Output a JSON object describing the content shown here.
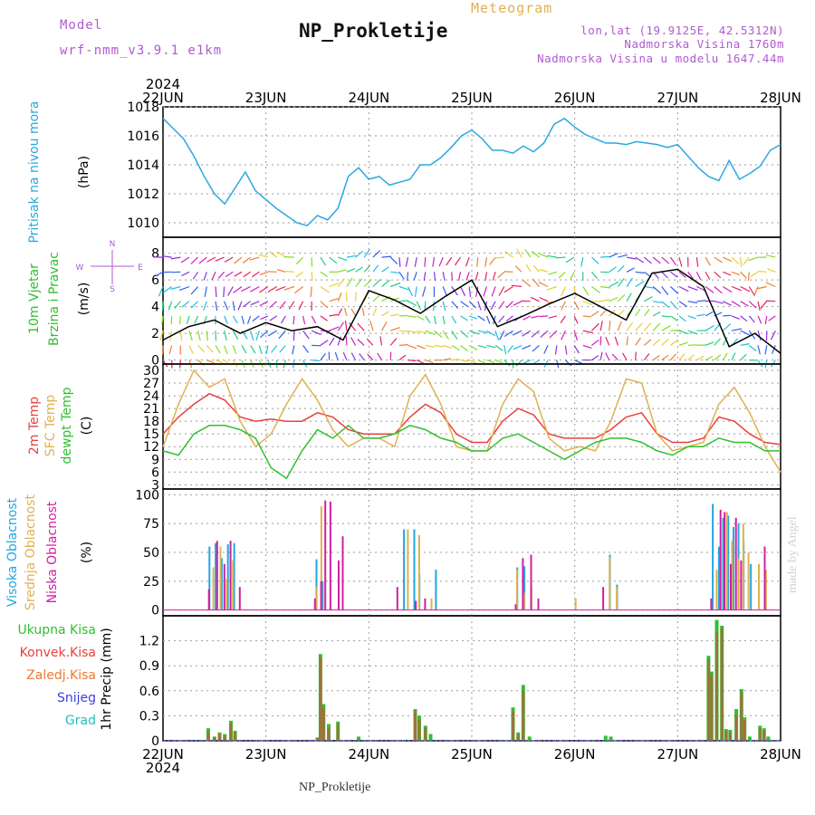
{
  "header": {
    "model_label": "Model",
    "model_run": "wrf-nmm_v3.9.1 e1km",
    "title": "NP_Prokletije",
    "subtitle": "Meteogram",
    "lonlat": "lon,lat (19.9125E, 42.5312N)",
    "elevation": "Nadmorska Visina 1760m",
    "model_elevation": "Nadmorska Visina u modelu 1647.44m",
    "year_top": "2024",
    "year_bottom": "2024"
  },
  "footer": {
    "location": "NP_Prokletije",
    "credit": "made by Angel"
  },
  "colors": {
    "pressure": "#2aa8e0",
    "temp2m": "#e84040",
    "sfctemp": "#e0b050",
    "dewpoint": "#30c030",
    "high_cloud": "#20a8e0",
    "mid_cloud": "#e0b050",
    "low_cloud": "#d020a0",
    "total_precip": "#30c030",
    "conv_precip": "#e84040",
    "freezing_precip": "#f07830",
    "snow": "#4040e0",
    "hail": "#20c0c0",
    "axis_label_wind": "#30c030"
  },
  "chart_data": [
    {
      "type": "line",
      "panel": "pressure",
      "labels": [
        "Pritisak na nivou mora",
        "(hPa)"
      ],
      "ylim": [
        1009,
        1018
      ],
      "yticks": [
        1010,
        1012,
        1014,
        1016,
        1018
      ],
      "x_days": [
        "22JUN",
        "23JUN",
        "24JUN",
        "25JUN",
        "26JUN",
        "27JUN",
        "28JUN"
      ],
      "x": [
        0,
        0.1,
        0.2,
        0.3,
        0.4,
        0.5,
        0.6,
        0.7,
        0.8,
        0.9,
        1.0,
        1.1,
        1.2,
        1.3,
        1.4,
        1.5,
        1.6,
        1.7,
        1.8,
        1.9,
        2.0,
        2.1,
        2.2,
        2.3,
        2.4,
        2.5,
        2.6,
        2.7,
        2.8,
        2.9,
        3.0,
        3.1,
        3.2,
        3.3,
        3.4,
        3.5,
        3.6,
        3.7,
        3.8,
        3.9,
        4.0,
        4.1,
        4.2,
        4.3,
        4.4,
        4.5,
        4.6,
        4.7,
        4.8,
        4.9,
        5.0,
        5.1,
        5.2,
        5.3,
        5.4,
        5.5,
        5.6,
        5.7,
        5.8,
        5.9,
        6.0
      ],
      "values": [
        1017.2,
        1016.5,
        1015.8,
        1014.6,
        1013.2,
        1012.0,
        1011.3,
        1012.4,
        1013.5,
        1012.2,
        1011.6,
        1011.0,
        1010.5,
        1010.0,
        1009.8,
        1010.5,
        1010.2,
        1011.0,
        1013.2,
        1013.8,
        1013.0,
        1013.2,
        1012.6,
        1012.8,
        1013.0,
        1014.0,
        1014.0,
        1014.5,
        1015.2,
        1016.0,
        1016.4,
        1015.8,
        1015.0,
        1015.0,
        1014.8,
        1015.3,
        1014.9,
        1015.5,
        1016.8,
        1017.2,
        1016.6,
        1016.1,
        1015.8,
        1015.5,
        1015.5,
        1015.4,
        1015.6,
        1015.5,
        1015.4,
        1015.2,
        1015.4,
        1014.6,
        1013.8,
        1013.2,
        1012.9,
        1014.3,
        1013.0,
        1013.4,
        1013.9,
        1015.0,
        1015.4
      ]
    },
    {
      "type": "line",
      "panel": "wind",
      "labels": [
        "10m Vjetar",
        "Brzina i Pravac",
        "(m/s)"
      ],
      "compass": [
        "N",
        "S",
        "W",
        "E"
      ],
      "ylim": [
        -0.3,
        9.2
      ],
      "yticks": [
        0,
        2,
        4,
        6,
        8
      ],
      "x": [
        0,
        0.25,
        0.5,
        0.75,
        1.0,
        1.25,
        1.5,
        1.75,
        2.0,
        2.25,
        2.5,
        2.75,
        3.0,
        3.25,
        3.5,
        3.75,
        4.0,
        4.25,
        4.5,
        4.75,
        5.0,
        5.25,
        5.5,
        5.75,
        6.0
      ],
      "speed": [
        1.5,
        2.5,
        3.0,
        2.0,
        2.8,
        2.2,
        2.5,
        1.5,
        5.2,
        4.5,
        3.5,
        4.8,
        6.0,
        2.5,
        3.3,
        4.2,
        5.0,
        4.0,
        3.0,
        6.5,
        6.8,
        5.5,
        1.0,
        2.0,
        0.5
      ]
    },
    {
      "type": "line",
      "panel": "temperature",
      "labels": [
        "2m Temp",
        "SFC Temp",
        "dewpt Temp",
        "(C)"
      ],
      "ylim": [
        2,
        31.5
      ],
      "yticks": [
        3,
        6,
        9,
        12,
        15,
        18,
        21,
        24,
        27,
        30
      ],
      "series": [
        {
          "name": "2m Temp",
          "x": [
            0,
            0.15,
            0.3,
            0.45,
            0.6,
            0.75,
            0.9,
            1.05,
            1.2,
            1.35,
            1.5,
            1.65,
            1.8,
            1.95,
            2.1,
            2.25,
            2.4,
            2.55,
            2.7,
            2.85,
            3.0,
            3.15,
            3.3,
            3.45,
            3.6,
            3.75,
            3.9,
            4.05,
            4.2,
            4.35,
            4.5,
            4.65,
            4.8,
            4.95,
            5.1,
            5.25,
            5.4,
            5.55,
            5.7,
            5.85,
            6.0
          ],
          "values": [
            15,
            19,
            22,
            24.5,
            23,
            19,
            18,
            18.5,
            18,
            18,
            20,
            19,
            16,
            15,
            15,
            15,
            19,
            22,
            20,
            15,
            13,
            13,
            18,
            21,
            19.5,
            15,
            14,
            14,
            14,
            16,
            19,
            20,
            15,
            13,
            13,
            14,
            19,
            18,
            15,
            13,
            12.5
          ]
        },
        {
          "name": "SFC Temp",
          "x": [
            0,
            0.15,
            0.3,
            0.45,
            0.6,
            0.75,
            0.9,
            1.05,
            1.2,
            1.35,
            1.5,
            1.65,
            1.8,
            1.95,
            2.1,
            2.25,
            2.4,
            2.55,
            2.7,
            2.85,
            3.0,
            3.15,
            3.3,
            3.45,
            3.6,
            3.75,
            3.9,
            4.05,
            4.2,
            4.35,
            4.5,
            4.65,
            4.8,
            4.95,
            5.1,
            5.25,
            5.4,
            5.55,
            5.7,
            5.85,
            6.0
          ],
          "values": [
            12,
            22,
            30,
            26,
            28,
            18,
            12,
            15,
            22,
            28,
            23,
            16,
            12,
            14,
            14,
            12,
            24,
            29,
            22,
            12,
            11,
            11,
            22,
            28,
            25,
            14,
            11,
            12,
            11,
            18,
            28,
            27,
            15,
            11,
            12,
            13,
            22,
            26,
            20,
            12,
            6
          ]
        },
        {
          "name": "dewpt Temp",
          "x": [
            0,
            0.15,
            0.3,
            0.45,
            0.6,
            0.75,
            0.9,
            1.05,
            1.2,
            1.35,
            1.5,
            1.65,
            1.8,
            1.95,
            2.1,
            2.25,
            2.4,
            2.55,
            2.7,
            2.85,
            3.0,
            3.15,
            3.3,
            3.45,
            3.6,
            3.75,
            3.9,
            4.05,
            4.2,
            4.35,
            4.5,
            4.65,
            4.8,
            4.95,
            5.1,
            5.25,
            5.4,
            5.55,
            5.7,
            5.85,
            6.0
          ],
          "values": [
            11,
            10,
            15,
            17,
            17,
            16,
            14,
            7,
            4.5,
            11,
            16,
            14,
            17,
            14,
            14,
            15,
            17,
            16,
            14,
            13,
            11,
            11,
            14,
            15,
            13,
            11,
            9,
            11,
            13,
            14,
            14,
            13,
            11,
            10,
            12,
            12,
            14,
            13,
            13,
            11,
            11
          ]
        }
      ]
    },
    {
      "type": "bar",
      "panel": "cloud",
      "labels": [
        "Visoka Oblacnost",
        "Srednja Oblacnost",
        "Niska Oblacnost",
        "(%)"
      ],
      "ylim": [
        -5,
        105
      ],
      "yticks": [
        0,
        25,
        50,
        75,
        100
      ],
      "series": [
        {
          "name": "Visoka Oblacnost",
          "x": [
            0.46,
            0.52,
            0.58,
            0.64,
            0.7,
            1.5,
            1.56,
            2.35,
            2.45,
            2.5,
            2.66,
            3.45,
            3.52,
            4.35,
            4.42,
            5.35,
            5.41,
            5.45,
            5.5,
            5.55,
            5.6,
            5.65,
            5.72
          ],
          "values": [
            55,
            58,
            45,
            57,
            58,
            44,
            25,
            70,
            70,
            31,
            35,
            37,
            38,
            48,
            22,
            92,
            55,
            80,
            82,
            72,
            75,
            60,
            40
          ]
        },
        {
          "name": "Srednja Oblacnost",
          "x": [
            0.48,
            0.55,
            0.61,
            0.67,
            1.48,
            1.53,
            2.37,
            2.48,
            2.6,
            3.43,
            3.5,
            3.57,
            4.0,
            4.33,
            4.4,
            5.37,
            5.47,
            5.52,
            5.58,
            5.63,
            5.68,
            5.78,
            5.85
          ],
          "values": [
            37,
            55,
            27,
            43,
            20,
            90,
            70,
            65,
            10,
            35,
            15,
            20,
            10,
            46,
            20,
            35,
            85,
            60,
            45,
            75,
            50,
            40,
            35
          ]
        },
        {
          "name": "Niska Oblacnost",
          "x": [
            0.42,
            0.5,
            0.57,
            0.63,
            0.72,
            1.45,
            1.51,
            1.55,
            1.6,
            1.68,
            1.72,
            2.25,
            2.43,
            2.52,
            3.4,
            3.47,
            3.55,
            3.62,
            4.25,
            5.3,
            5.39,
            5.43,
            5.49,
            5.54,
            5.59,
            5.82
          ],
          "values": [
            18,
            60,
            40,
            60,
            20,
            10,
            25,
            95,
            94,
            43,
            64,
            20,
            8,
            10,
            5,
            45,
            48,
            10,
            20,
            10,
            87,
            85,
            40,
            80,
            43,
            55
          ]
        }
      ]
    },
    {
      "type": "bar",
      "panel": "precip",
      "labels": [
        "Ukupna Kisa",
        "Konvek.Kisa",
        "Zaledj.Kisa",
        "Snijeg",
        "Grad",
        "1hr Precip (mm)"
      ],
      "ylim": [
        0,
        1.5
      ],
      "yticks": [
        0,
        0.3,
        0.6,
        0.9,
        1.2
      ],
      "series": [
        {
          "name": "Ukupna Kisa",
          "x": [
            0.44,
            0.5,
            0.55,
            0.6,
            0.66,
            0.7,
            1.5,
            1.53,
            1.56,
            1.61,
            1.7,
            1.9,
            2.45,
            2.49,
            2.55,
            2.6,
            3.4,
            3.45,
            3.5,
            3.56,
            4.3,
            4.35,
            5.3,
            5.33,
            5.38,
            5.43,
            5.47,
            5.51,
            5.57,
            5.62,
            5.65,
            5.7,
            5.8,
            5.84,
            5.88
          ],
          "values": [
            0.15,
            0.05,
            0.1,
            0.08,
            0.24,
            0.12,
            0.04,
            1.04,
            0.44,
            0.2,
            0.23,
            0.05,
            0.38,
            0.3,
            0.18,
            0.08,
            0.4,
            0.1,
            0.67,
            0.05,
            0.06,
            0.05,
            1.02,
            0.83,
            1.45,
            1.38,
            0.14,
            0.13,
            0.38,
            0.62,
            0.28,
            0.05,
            0.18,
            0.15,
            0.05
          ]
        },
        {
          "name": "Konvek.Kisa",
          "x": [
            0.44,
            0.5,
            0.55,
            0.6,
            0.66,
            0.7,
            1.5,
            1.53,
            1.56,
            1.61,
            1.7,
            2.45,
            2.49,
            2.55,
            3.4,
            3.45,
            3.5,
            5.3,
            5.33,
            5.38,
            5.43,
            5.47,
            5.51,
            5.57,
            5.62,
            5.65,
            5.8,
            5.84
          ],
          "values": [
            0.1,
            0.04,
            0.08,
            0.05,
            0.2,
            0.1,
            0.03,
            1.0,
            0.4,
            0.15,
            0.2,
            0.35,
            0.25,
            0.15,
            0.35,
            0.08,
            0.6,
            0.98,
            0.8,
            1.3,
            1.35,
            0.12,
            0.1,
            0.3,
            0.58,
            0.25,
            0.15,
            0.12
          ]
        }
      ]
    }
  ]
}
